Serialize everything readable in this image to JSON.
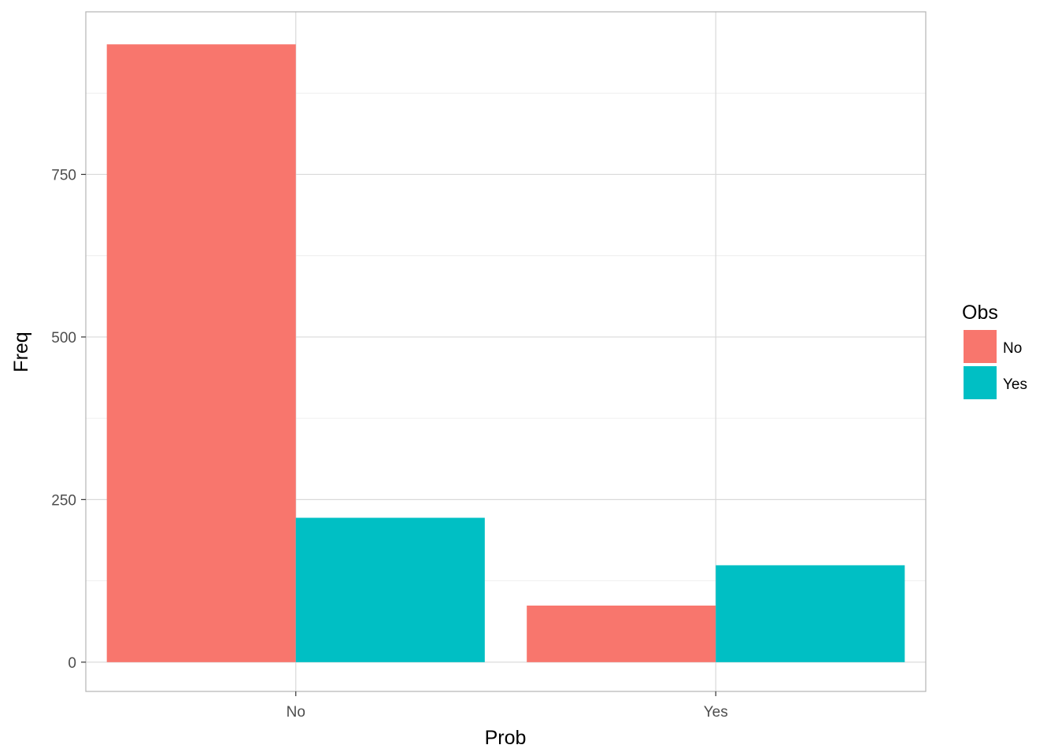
{
  "chart_data": {
    "type": "bar",
    "title": "",
    "xlabel": "Prob",
    "ylabel": "Freq",
    "categories": [
      "No",
      "Yes"
    ],
    "series": [
      {
        "name": "No",
        "color": "#F8766D",
        "values": [
          950,
          87
        ]
      },
      {
        "name": "Yes",
        "color": "#00BFC4",
        "values": [
          222,
          149
        ]
      }
    ],
    "ylim": [
      -45,
      1000
    ],
    "yticks": [
      0,
      250,
      500,
      750
    ],
    "yticks_minor": [
      125,
      375,
      625,
      875
    ],
    "ytick_labels": [
      "0",
      "250",
      "500",
      "750"
    ],
    "grid": true,
    "legend": {
      "title": "Obs",
      "position": "right",
      "entries": [
        "No",
        "Yes"
      ]
    }
  }
}
